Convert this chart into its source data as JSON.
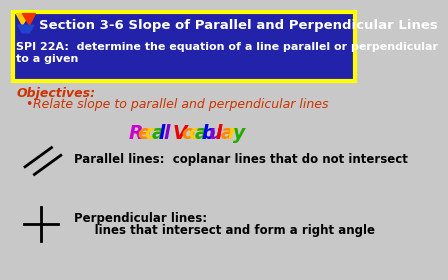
{
  "bg_color": "#c8c8c8",
  "header_bg": "#2222aa",
  "header_border": "#ffff00",
  "header_title": "Section 3-6 Slope of Parallel and Perpendicular Lines",
  "header_sub": "SPI 22A:  determine the equation of a line parallel or perpendicular to a given",
  "objectives_label": "Objectives:",
  "objectives_text": "Relate slope to parallel and perpendicular lines",
  "parallel_text": "Parallel lines:  coplanar lines that do not intersect",
  "perp_text1": "Perpendicular lines:",
  "perp_text2": "     lines that intersect and form a right angle",
  "text_color": "#000000",
  "obj_color": "#cc3300",
  "recall_letters": [
    "R",
    "e",
    "c",
    "a",
    "l",
    "l",
    " ",
    "V",
    "o",
    "c",
    "a",
    "b",
    "u",
    "l",
    "a",
    "r",
    "y"
  ],
  "recall_colors": [
    "#cc00cc",
    "#ff8800",
    "#ffcc00",
    "#22aa00",
    "#0000ee",
    "#8800cc",
    null,
    "#ee0000",
    "#ff8800",
    "#ffcc00",
    "#22aa00",
    "#0000ee",
    "#8800cc",
    "#ee0000",
    "#ff8800",
    "#ffcc00",
    "#22aa00"
  ]
}
